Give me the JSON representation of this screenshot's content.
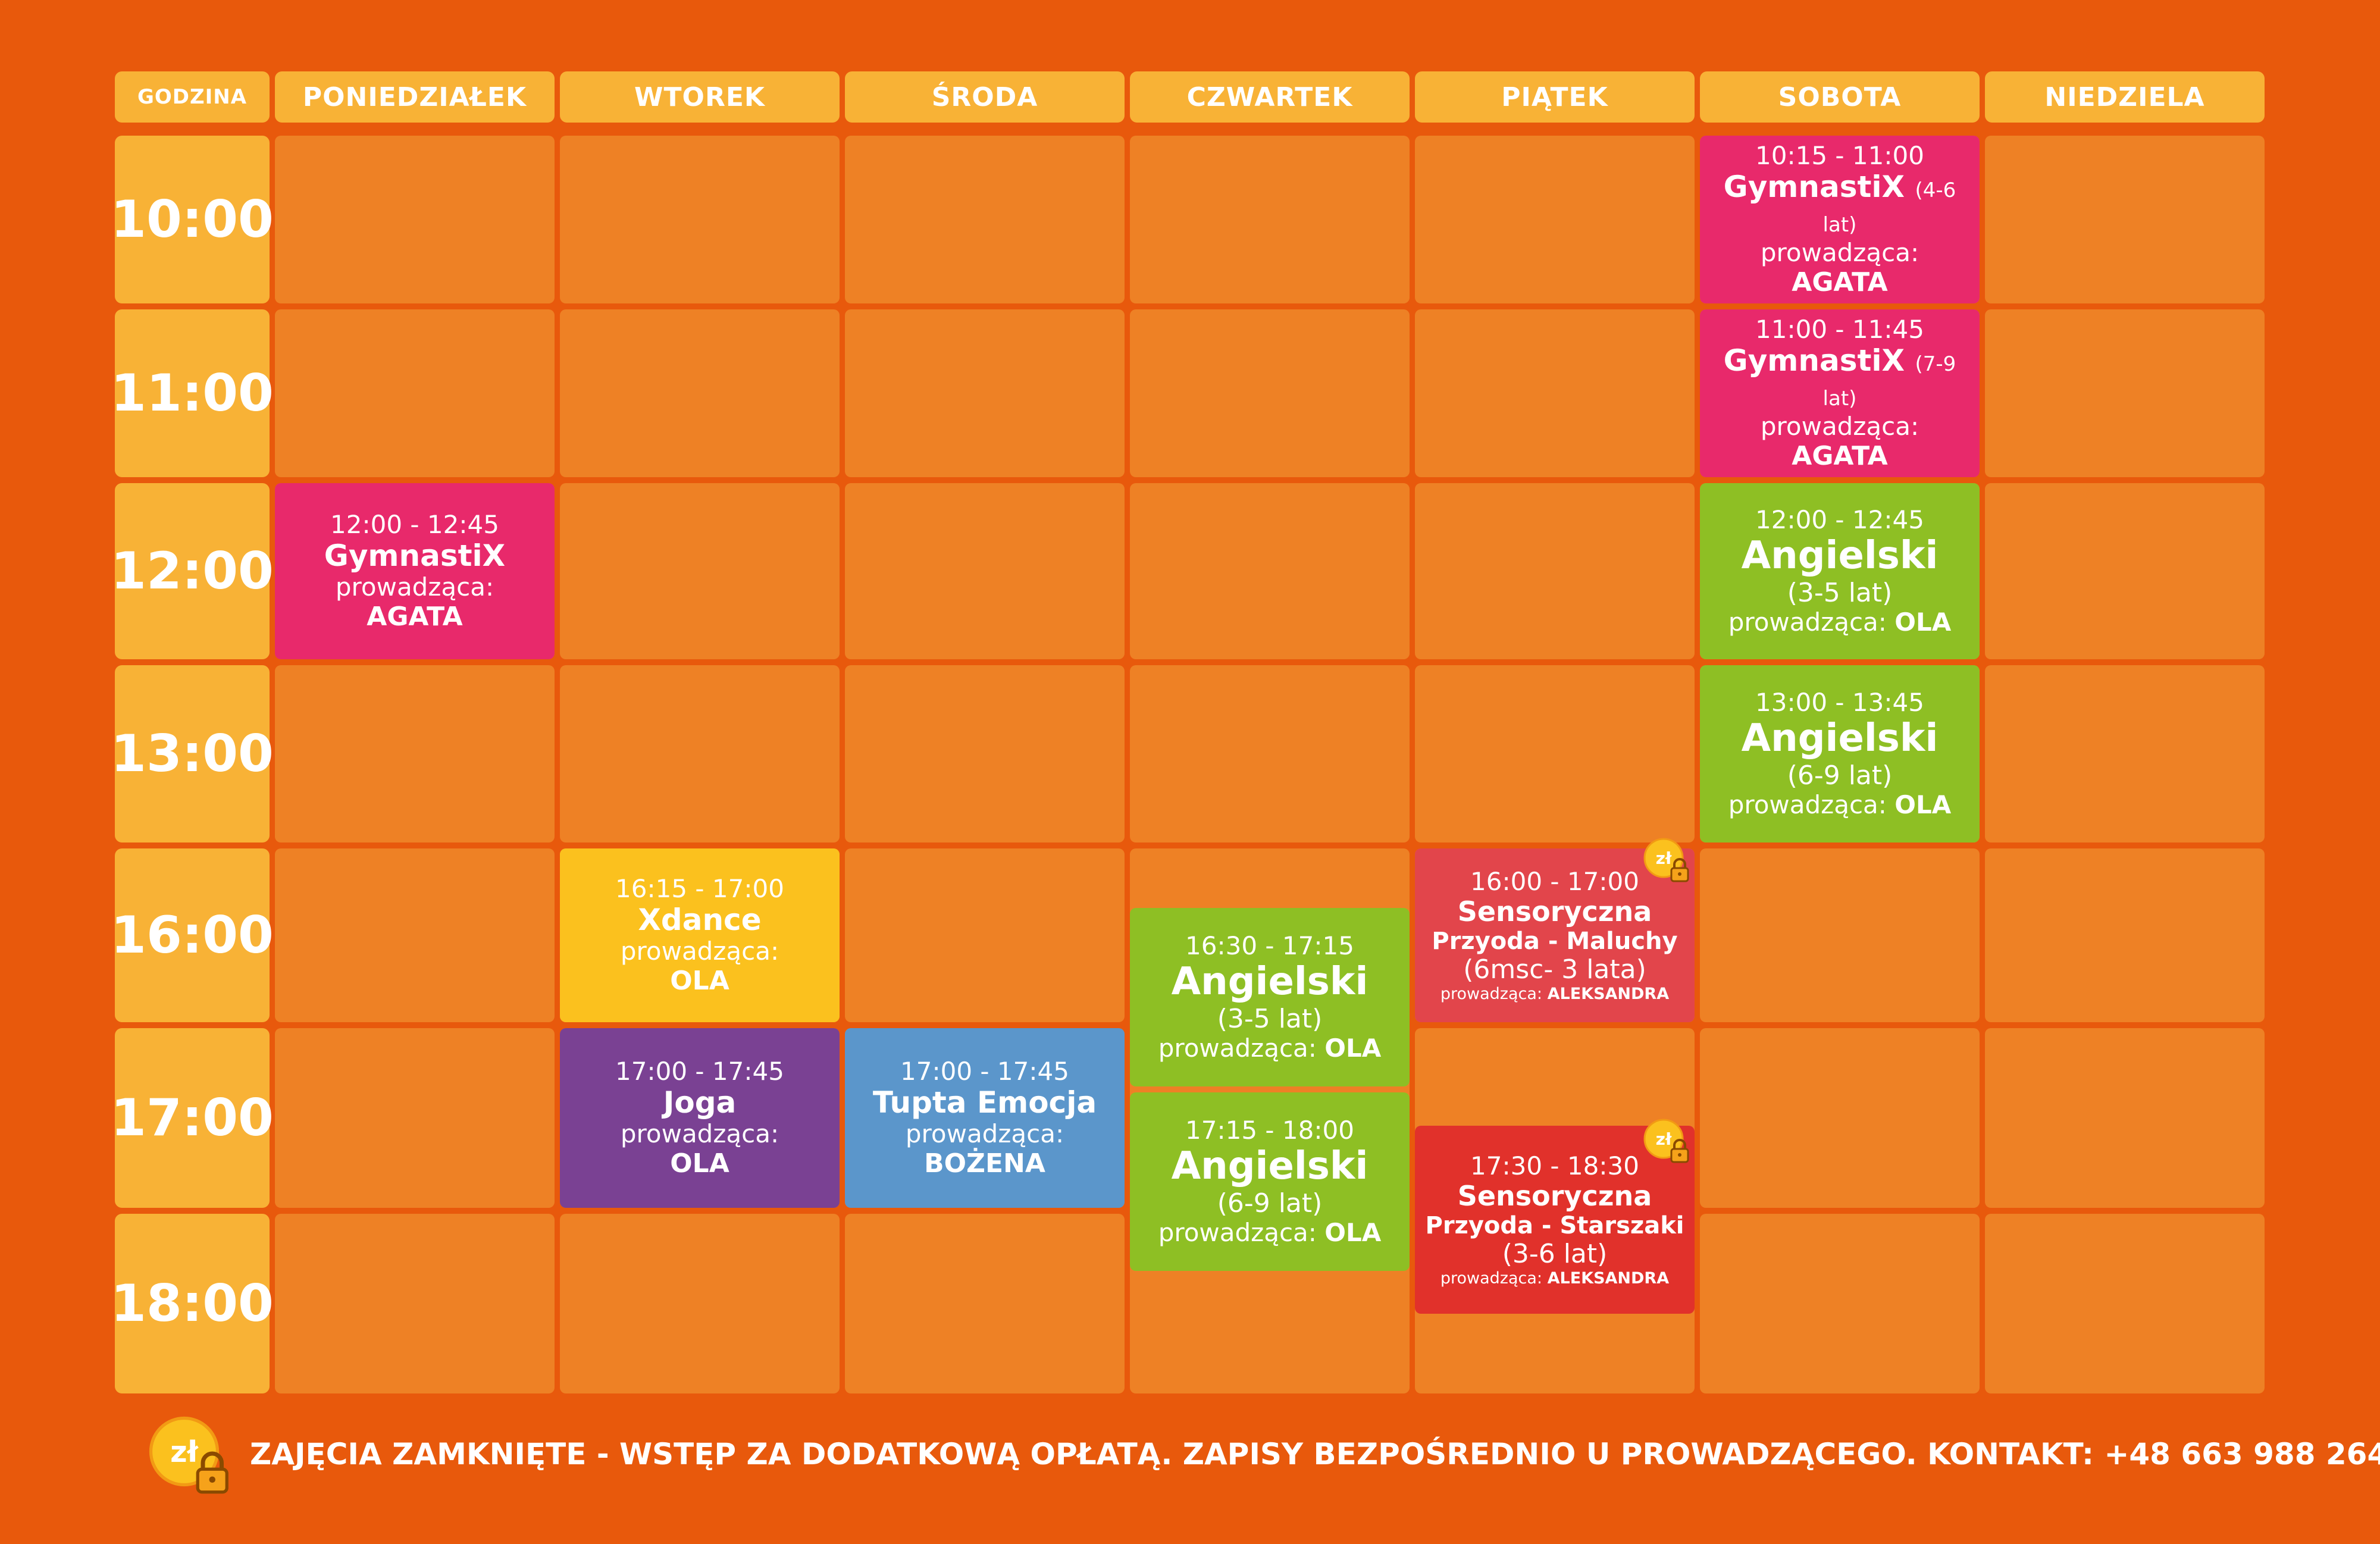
{
  "header": {
    "hour_label": "GODZINA",
    "days": [
      "PONIEDZIAŁEK",
      "WTOREK",
      "ŚRODA",
      "CZWARTEK",
      "PIĄTEK",
      "SOBOTA",
      "NIEDZIELA"
    ]
  },
  "hours": [
    "10:00",
    "11:00",
    "12:00",
    "13:00",
    "16:00",
    "17:00",
    "18:00"
  ],
  "events": {
    "mon_gym": {
      "time": "12:00 - 12:45",
      "name": "GymnastiX",
      "label": "prowadząca:",
      "who": "AGATA"
    },
    "tue_xdance": {
      "time": "16:15 - 17:00",
      "name": "Xdance",
      "label": "prowadząca:",
      "who": "OLA"
    },
    "tue_joga": {
      "time": "17:00 - 17:45",
      "name": "Joga",
      "label": "prowadząca:",
      "who": "OLA"
    },
    "wed_tupta": {
      "time": "17:00 - 17:45",
      "name": "Tupta Emocja",
      "label": "prowadząca:",
      "who": "BOŻENA"
    },
    "thu_ang1": {
      "time": "16:30 - 17:15",
      "name": "Angielski",
      "age": "(3-5 lat)",
      "label": "prowadząca:",
      "who": "OLA"
    },
    "thu_ang2": {
      "time": "17:15 - 18:00",
      "name": "Angielski",
      "age": "(6-9 lat)",
      "label": "prowadząca:",
      "who": "OLA"
    },
    "fri_sens1": {
      "time": "16:00 - 17:00",
      "name1": "Sensoryczna",
      "name2": "Przyoda - Maluchy",
      "age": "(6msc- 3 lata)",
      "label": "prowadząca:",
      "who": "ALEKSANDRA"
    },
    "fri_sens2": {
      "time": "17:30 - 18:30",
      "name1": "Sensoryczna",
      "name2": "Przyoda - Starszaki",
      "age": "(3-6 lat)",
      "label": "prowadząca:",
      "who": "ALEKSANDRA"
    },
    "sat_gym1": {
      "time": "10:15 - 11:00",
      "name": "GymnastiX",
      "age": "(4-6 lat)",
      "label": "prowadząca:",
      "who": "AGATA"
    },
    "sat_gym2": {
      "time": "11:00 - 11:45",
      "name": "GymnastiX",
      "age": "(7-9 lat)",
      "label": "prowadząca:",
      "who": "AGATA"
    },
    "sat_ang1": {
      "time": "12:00 - 12:45",
      "name": "Angielski",
      "age": "(3-5 lat)",
      "label": "prowadząca:",
      "who": "OLA"
    },
    "sat_ang2": {
      "time": "13:00 - 13:45",
      "name": "Angielski",
      "age": "(6-9 lat)",
      "label": "prowadząca:",
      "who": "OLA"
    }
  },
  "badge_text": "zł",
  "footer": "ZAJĘCIA ZAMKNIĘTE - WSTĘP ZA DODATKOWĄ OPŁATĄ. ZAPISY BEZPOŚREDNIO U PROWADZĄCEGO. KONTAKT: +48 663 988 264",
  "colors": {
    "background": "#e8590c",
    "header": "#f8b236",
    "cell": "#ee8125",
    "pink": "#e8296b",
    "green": "#8ebf24",
    "yellow": "#fbc11e",
    "purple": "#7a4193",
    "blue": "#5b96cb",
    "red": "#e1312b"
  }
}
